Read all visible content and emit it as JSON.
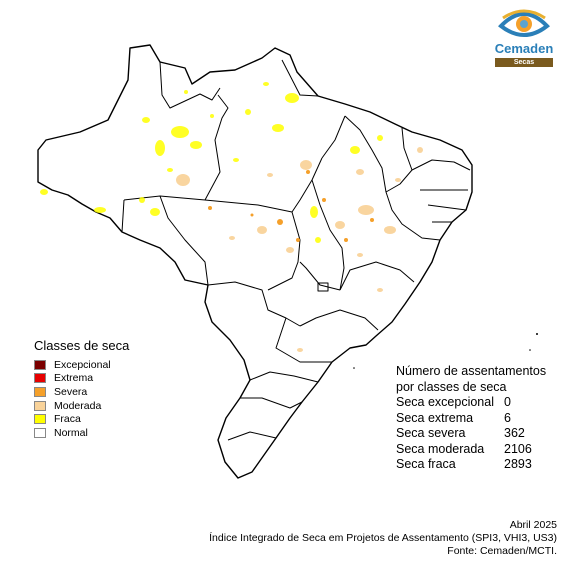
{
  "logo": {
    "name": "Cemaden",
    "subtitle": "Secas"
  },
  "legend": {
    "title": "Classes de seca",
    "items": [
      {
        "label": "Excepcional",
        "color": "#7a0000"
      },
      {
        "label": "Extrema",
        "color": "#e60000"
      },
      {
        "label": "Severa",
        "color": "#f5a02a"
      },
      {
        "label": "Moderada",
        "color": "#f9d39a"
      },
      {
        "label": "Fraca",
        "color": "#ffff00"
      },
      {
        "label": "Normal",
        "color": "#ffffff"
      }
    ]
  },
  "stats": {
    "title_line1": "Número de assentamentos",
    "title_line2": "por classes de seca",
    "rows": [
      {
        "label": "Seca excepcional",
        "value": "0"
      },
      {
        "label": "Seca extrema",
        "value": "6"
      },
      {
        "label": "Seca severa",
        "value": "362"
      },
      {
        "label": "Seca moderada",
        "value": "2106"
      },
      {
        "label": "Seca fraca",
        "value": "2893"
      }
    ]
  },
  "footer": {
    "date": "Abril 2025",
    "index": "Índice Integrado de Seca em Projetos de Assentamento (SPI3, VHI3, US3)",
    "source": "Fonte: Cemaden/MCTI."
  },
  "colors": {
    "outline": "#000000",
    "fraca": "#ffff00",
    "moderada": "#f9d39a",
    "severa": "#f5a02a"
  }
}
